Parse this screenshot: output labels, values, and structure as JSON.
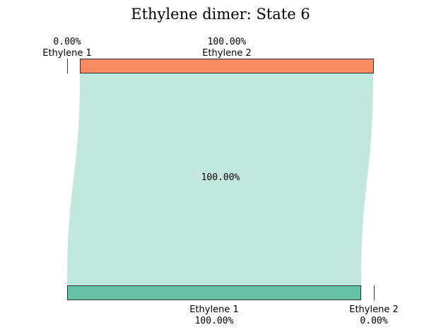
{
  "chart_data": {
    "type": "sankey",
    "title": "Ethylene dimer: State 6",
    "top_nodes": [
      {
        "name": "Ethylene 1",
        "value_label": "0.00%",
        "fraction": 0.0,
        "color": ""
      },
      {
        "name": "Ethylene 2",
        "value_label": "100.00%",
        "fraction": 1.0,
        "color": "#fc8d62"
      }
    ],
    "bottom_nodes": [
      {
        "name": "Ethylene 1",
        "value_label": "100.00%",
        "fraction": 1.0,
        "color": "#66c2a5"
      },
      {
        "name": "Ethylene 2",
        "value_label": "0.00%",
        "fraction": 0.0,
        "color": ""
      }
    ],
    "flows": [
      {
        "from": "Ethylene 2",
        "to": "Ethylene 1",
        "value": 1.0,
        "label": "100.00%",
        "color": "#c2e7dc"
      }
    ]
  }
}
